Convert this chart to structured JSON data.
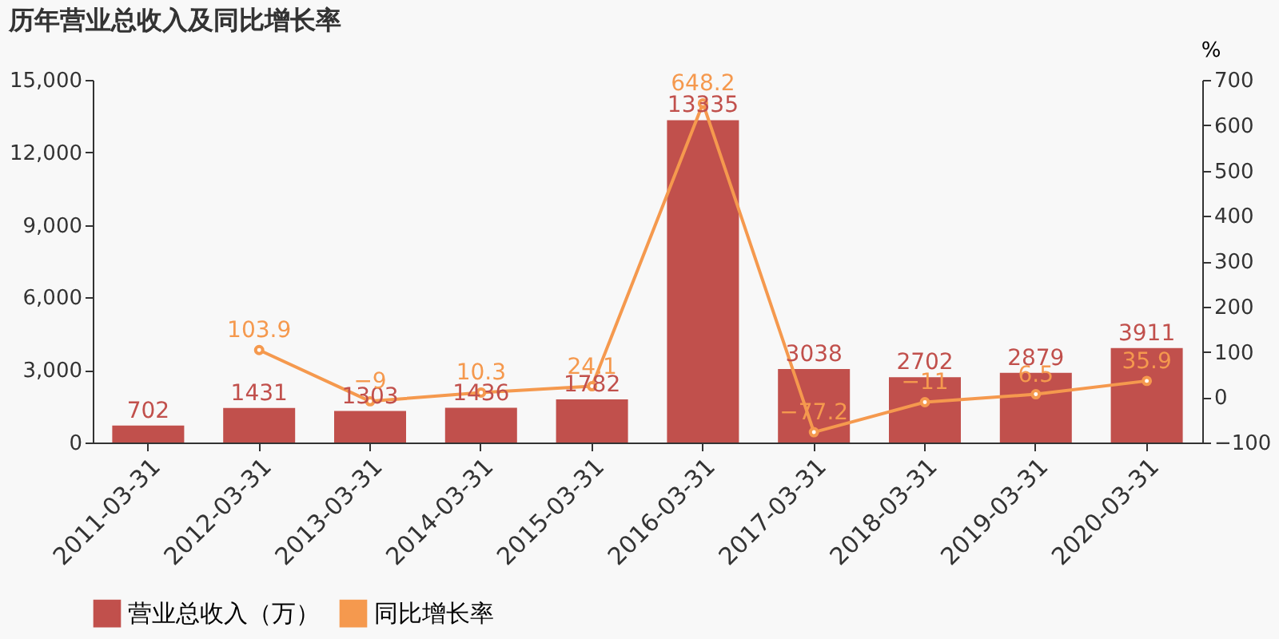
{
  "chart_data": {
    "type": "bar",
    "title": "历年营业总收入及同比增长率",
    "y2label": "%",
    "categories": [
      "2011-03-31",
      "2012-03-31",
      "2013-03-31",
      "2014-03-31",
      "2015-03-31",
      "2016-03-31",
      "2017-03-31",
      "2018-03-31",
      "2019-03-31",
      "2020-03-31"
    ],
    "series": [
      {
        "name": "营业总收入（万）",
        "color": "#c1504c",
        "values": [
          702,
          1431,
          1303,
          1436,
          1782,
          13335,
          3038,
          2702,
          2879,
          3911
        ]
      },
      {
        "name": "同比增长率",
        "type": "line",
        "axis": "y2",
        "color": "#f5994e",
        "marker": "circle",
        "values": [
          null,
          103.9,
          -9,
          10.3,
          24.1,
          648.2,
          -77.2,
          -11,
          6.5,
          35.9
        ]
      }
    ],
    "ylim": [
      0,
      15000
    ],
    "yticks": [
      {
        "value": 0,
        "label": "0"
      },
      {
        "value": 3000,
        "label": "3,000"
      },
      {
        "value": 6000,
        "label": "6,000"
      },
      {
        "value": 9000,
        "label": "9,000"
      },
      {
        "value": 12000,
        "label": "12,000"
      },
      {
        "value": 15000,
        "label": "15,000"
      }
    ],
    "y2lim": [
      -100,
      700
    ],
    "y2ticks": [
      -100,
      0,
      100,
      200,
      300,
      400,
      500,
      600,
      700
    ],
    "data_labels": true,
    "legend": "bottom",
    "grid": false
  }
}
